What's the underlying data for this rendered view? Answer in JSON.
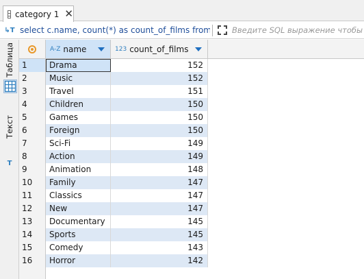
{
  "tab": {
    "label": "category 1",
    "close": "✕"
  },
  "filter": {
    "sql": "select c.name, count(*) as count_of_films from f",
    "placeholder": "Введите SQL выражение чтобы отфил"
  },
  "side_tabs": {
    "table": "Таблица",
    "text": "Текст"
  },
  "columns": [
    {
      "type": "A-Z",
      "label": "name"
    },
    {
      "type": "123",
      "label": "count_of_films"
    }
  ],
  "rows": [
    {
      "num": "1",
      "name": "Drama",
      "count": "152"
    },
    {
      "num": "2",
      "name": "Music",
      "count": "152"
    },
    {
      "num": "3",
      "name": "Travel",
      "count": "151"
    },
    {
      "num": "4",
      "name": "Children",
      "count": "150"
    },
    {
      "num": "5",
      "name": "Games",
      "count": "150"
    },
    {
      "num": "6",
      "name": "Foreign",
      "count": "150"
    },
    {
      "num": "7",
      "name": "Sci-Fi",
      "count": "149"
    },
    {
      "num": "8",
      "name": "Action",
      "count": "149"
    },
    {
      "num": "9",
      "name": "Animation",
      "count": "148"
    },
    {
      "num": "10",
      "name": "Family",
      "count": "147"
    },
    {
      "num": "11",
      "name": "Classics",
      "count": "147"
    },
    {
      "num": "12",
      "name": "New",
      "count": "147"
    },
    {
      "num": "13",
      "name": "Documentary",
      "count": "145"
    },
    {
      "num": "14",
      "name": "Sports",
      "count": "145"
    },
    {
      "num": "15",
      "name": "Comedy",
      "count": "143"
    },
    {
      "num": "16",
      "name": "Horror",
      "count": "142"
    }
  ],
  "colors": {
    "selection": "#cfe3f7",
    "alt_row": "#dde8f5",
    "sql_text": "#1f4e9a",
    "accent": "#1f6fc0"
  }
}
